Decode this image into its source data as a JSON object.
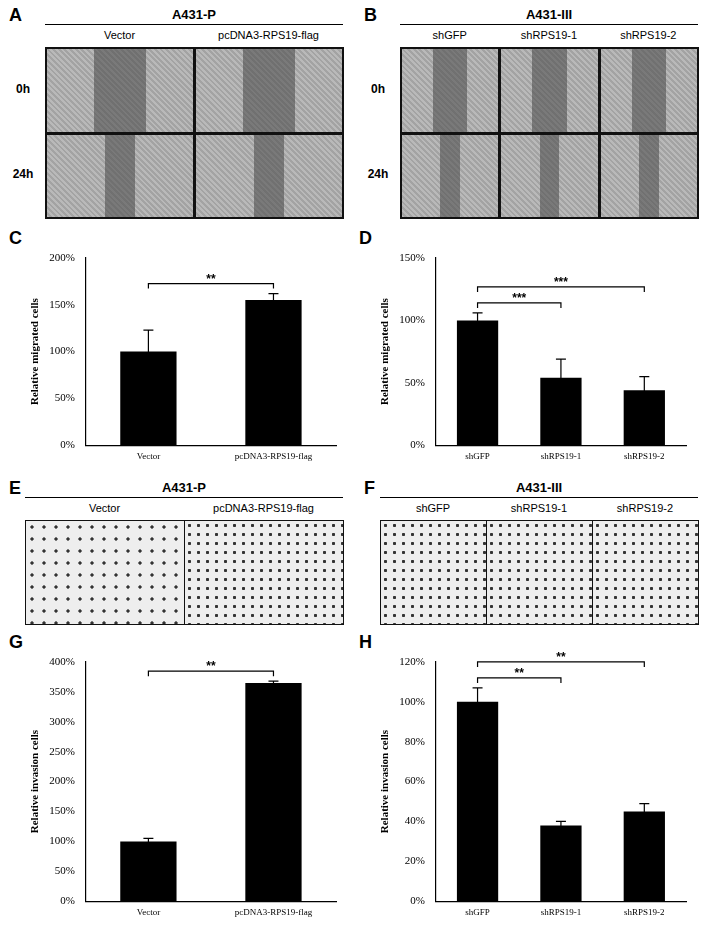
{
  "panels": [
    {
      "panel": "A",
      "title": "A431-P",
      "columns": [
        "Vector",
        "pcDNA3-RPS19-flag"
      ],
      "rows": [
        "0h",
        "24h"
      ]
    },
    {
      "panel": "B",
      "title": "A431-III",
      "columns": [
        "shGFP",
        "shRPS19-1",
        "shRPS19-2"
      ],
      "rows": [
        "0h",
        "24h"
      ]
    },
    {
      "panel": "E",
      "title": "A431-P",
      "columns": [
        "Vector",
        "pcDNA3-RPS19-flag"
      ]
    },
    {
      "panel": "F",
      "title": "A431-III",
      "columns": [
        "shGFP",
        "shRPS19-1",
        "shRPS19-2"
      ]
    }
  ],
  "chart_data": [
    {
      "panel": "C",
      "type": "bar",
      "ylabel": "Relative migrated cells",
      "categories": [
        "Vector",
        "pcDNA3-RPS19-flag"
      ],
      "values": [
        100,
        155
      ],
      "errors": [
        23,
        7
      ],
      "color": "#000000",
      "ylim": [
        0,
        200
      ],
      "yticks": [
        {
          "value": 0,
          "label": "0%"
        },
        {
          "value": 50,
          "label": "50%"
        },
        {
          "value": 100,
          "label": "100%"
        },
        {
          "value": 150,
          "label": "150%"
        },
        {
          "value": 200,
          "label": "200%"
        }
      ],
      "annotations": [
        {
          "from": 0,
          "to": 1,
          "label": "**"
        }
      ],
      "grid": false
    },
    {
      "panel": "D",
      "type": "bar",
      "ylabel": "Relative migrated cells",
      "categories": [
        "shGFP",
        "shRPS19-1",
        "shRPS19-2"
      ],
      "values": [
        100,
        54,
        44
      ],
      "errors": [
        6,
        15,
        11
      ],
      "color": "#000000",
      "ylim": [
        0,
        150
      ],
      "yticks": [
        {
          "value": 0,
          "label": "0%"
        },
        {
          "value": 50,
          "label": "50%"
        },
        {
          "value": 100,
          "label": "100%"
        },
        {
          "value": 150,
          "label": "150%"
        }
      ],
      "annotations": [
        {
          "from": 0,
          "to": 1,
          "label": "***"
        },
        {
          "from": 0,
          "to": 2,
          "label": "***"
        }
      ],
      "grid": false
    },
    {
      "panel": "G",
      "type": "bar",
      "ylabel": "Relative invasion cells",
      "categories": [
        "Vector",
        "pcDNA3-RPS19-flag"
      ],
      "values": [
        100,
        365
      ],
      "errors": [
        5,
        3
      ],
      "color": "#000000",
      "ylim": [
        0,
        400
      ],
      "yticks": [
        {
          "value": 0,
          "label": "0%"
        },
        {
          "value": 50,
          "label": "50%"
        },
        {
          "value": 100,
          "label": "100%"
        },
        {
          "value": 150,
          "label": "150%"
        },
        {
          "value": 200,
          "label": "200%"
        },
        {
          "value": 250,
          "label": "250%"
        },
        {
          "value": 300,
          "label": "300%"
        },
        {
          "value": 350,
          "label": "350%"
        },
        {
          "value": 400,
          "label": "400%"
        }
      ],
      "annotations": [
        {
          "from": 0,
          "to": 1,
          "label": "**"
        }
      ],
      "grid": false
    },
    {
      "panel": "H",
      "type": "bar",
      "ylabel": "Relative invasion cells",
      "categories": [
        "shGFP",
        "shRPS19-1",
        "shRPS19-2"
      ],
      "values": [
        100,
        38,
        45
      ],
      "errors": [
        7,
        2,
        4
      ],
      "color": "#000000",
      "ylim": [
        0,
        120
      ],
      "yticks": [
        {
          "value": 0,
          "label": "0%"
        },
        {
          "value": 20,
          "label": "20%"
        },
        {
          "value": 40,
          "label": "40%"
        },
        {
          "value": 60,
          "label": "60%"
        },
        {
          "value": 80,
          "label": "80%"
        },
        {
          "value": 100,
          "label": "100%"
        },
        {
          "value": 120,
          "label": "120%"
        }
      ],
      "annotations": [
        {
          "from": 0,
          "to": 1,
          "label": "**"
        },
        {
          "from": 0,
          "to": 2,
          "label": "**"
        }
      ],
      "grid": false
    }
  ]
}
